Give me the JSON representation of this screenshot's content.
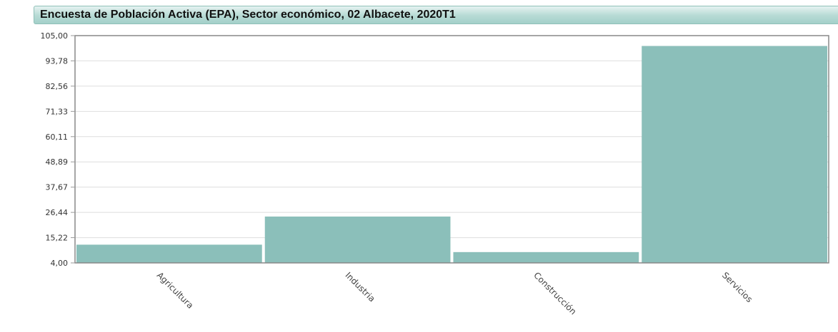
{
  "chart_data": {
    "type": "bar",
    "title": "Encuesta de Población Activa (EPA), Sector económico, 02 Albacete, 2020T1",
    "categories": [
      "Agricultura",
      "Industria",
      "Construcción",
      "Servicios"
    ],
    "values": [
      12.1,
      24.6,
      8.8,
      100.4
    ],
    "ylim": [
      4.0,
      105.0
    ],
    "yticks": [
      "105,00",
      "93,78",
      "82,56",
      "71,33",
      "60,11",
      "48,89",
      "37,67",
      "26,44",
      "15,22",
      "4,00"
    ],
    "ytick_values": [
      105.0,
      93.78,
      82.56,
      71.33,
      60.11,
      48.89,
      37.67,
      26.44,
      15.22,
      4.0
    ],
    "grid": true,
    "bar_color": "#8bbfba"
  }
}
